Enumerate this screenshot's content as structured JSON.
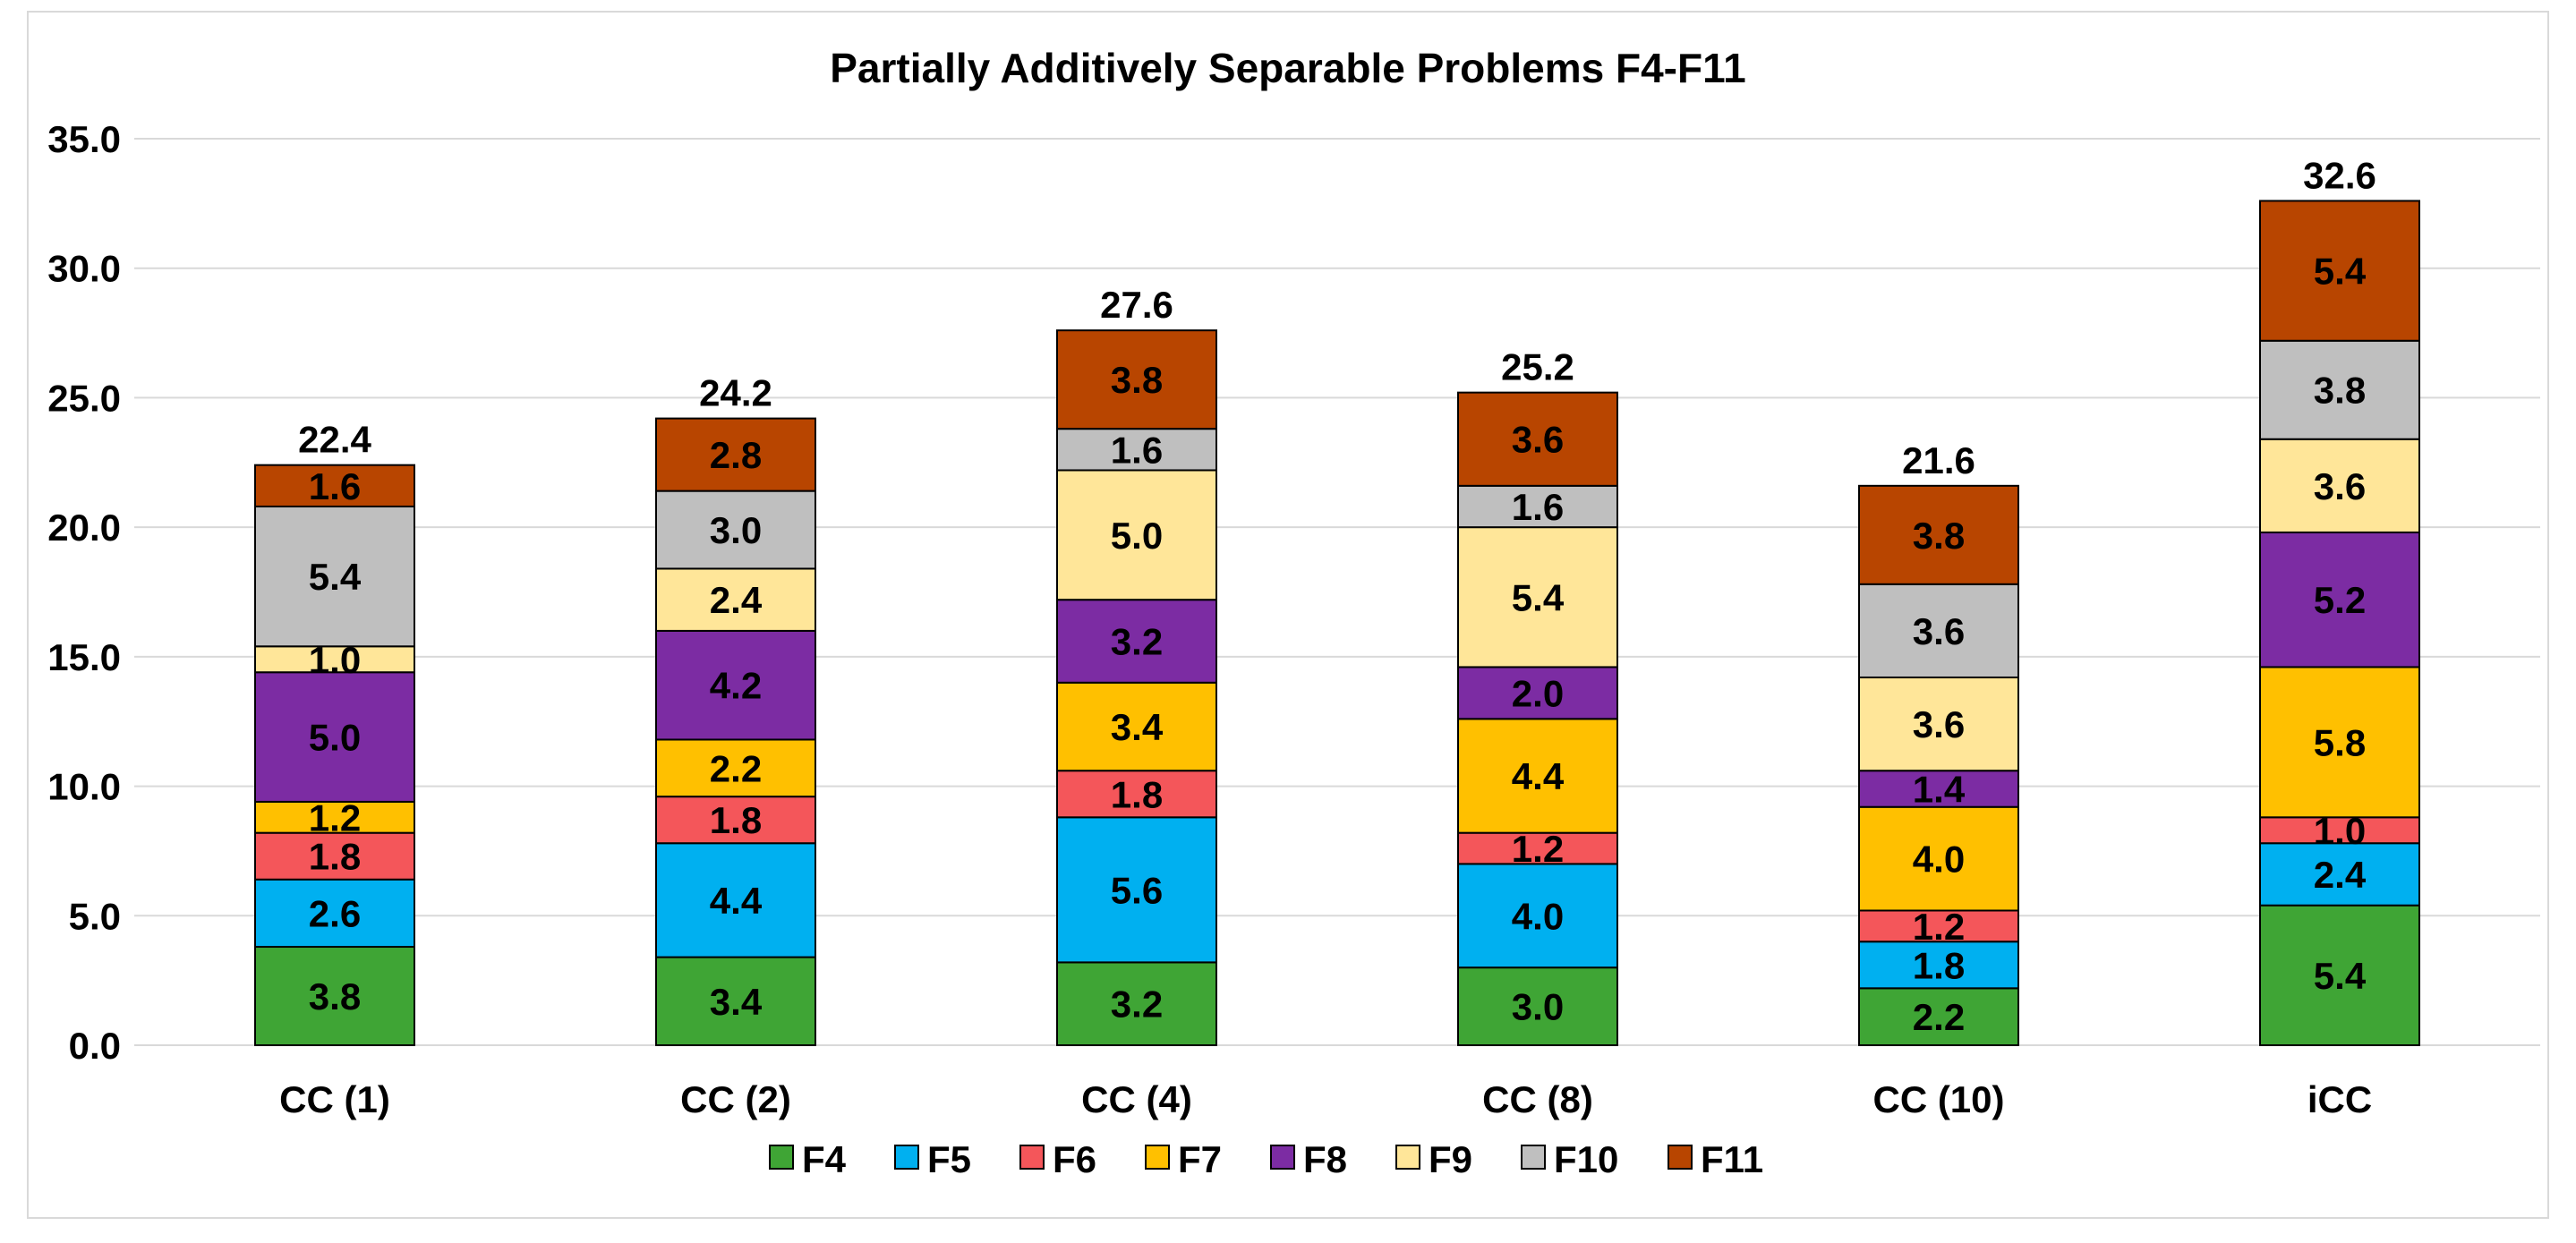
{
  "chart_data": {
    "type": "bar",
    "stacked": true,
    "title": "Partially Additively Separable Problems F4-F11",
    "xlabel": "",
    "ylabel": "",
    "ylim": [
      0,
      35
    ],
    "yticks": [
      0,
      5,
      10,
      15,
      20,
      25,
      30,
      35
    ],
    "ytick_labels": [
      "0.0",
      "5.0",
      "10.0",
      "15.0",
      "20.0",
      "25.0",
      "30.0",
      "35.0"
    ],
    "grid": true,
    "legend_position": "bottom",
    "categories": [
      "CC (1)",
      "CC (2)",
      "CC (4)",
      "CC (8)",
      "CC (10)",
      "iCC"
    ],
    "totals": [
      "22.4",
      "24.2",
      "27.6",
      "25.2",
      "21.6",
      "32.6"
    ],
    "series": [
      {
        "name": "F4",
        "color": "#3fa535",
        "values": [
          3.8,
          3.4,
          3.2,
          3.0,
          2.2,
          5.4
        ]
      },
      {
        "name": "F5",
        "color": "#00b0f0",
        "values": [
          2.6,
          4.4,
          5.6,
          4.0,
          1.8,
          2.4
        ]
      },
      {
        "name": "F6",
        "color": "#f4565a",
        "values": [
          1.8,
          1.8,
          1.8,
          1.2,
          1.2,
          1.0
        ]
      },
      {
        "name": "F7",
        "color": "#ffc000",
        "values": [
          1.2,
          2.2,
          3.4,
          4.4,
          4.0,
          5.8
        ]
      },
      {
        "name": "F8",
        "color": "#7c2ca3",
        "values": [
          5.0,
          4.2,
          3.2,
          2.0,
          1.4,
          5.2
        ]
      },
      {
        "name": "F9",
        "color": "#ffe699",
        "values": [
          1.0,
          2.4,
          5.0,
          5.4,
          3.6,
          3.6
        ]
      },
      {
        "name": "F10",
        "color": "#bfbfbf",
        "values": [
          5.4,
          3.0,
          1.6,
          1.6,
          3.6,
          3.8
        ]
      },
      {
        "name": "F11",
        "color": "#b84500",
        "values": [
          1.6,
          2.8,
          3.8,
          3.6,
          3.8,
          5.4
        ]
      }
    ]
  }
}
